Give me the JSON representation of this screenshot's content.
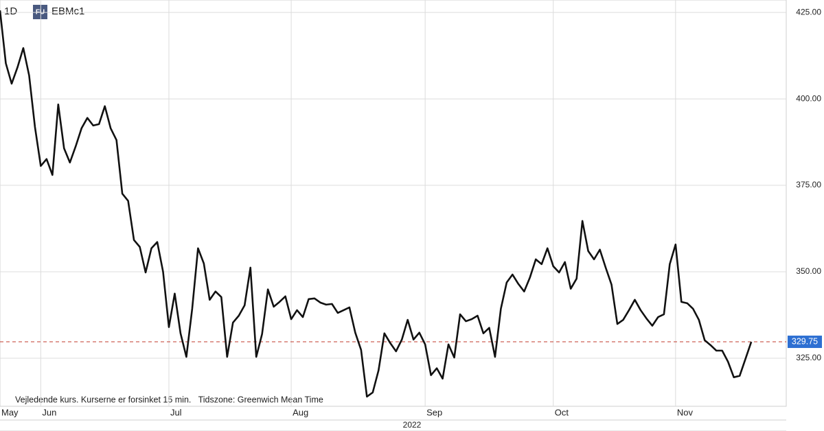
{
  "header": {
    "interval": "1D",
    "badge": "FU",
    "symbol": "EBMc1"
  },
  "footnote": "Vejledende kurs. Kurserne er forsinket 15 min.   Tidszone: Greenwich Mean Time",
  "chart_data": {
    "type": "line",
    "year_label": "2022",
    "color": "#111111",
    "grid": true,
    "xlim": [
      0,
      135
    ],
    "ylim": [
      311.1,
      428.6
    ],
    "xticks": [
      {
        "value": 0,
        "label": "May"
      },
      {
        "value": 7,
        "label": "Jun"
      },
      {
        "value": 29,
        "label": "Jul"
      },
      {
        "value": 50,
        "label": "Aug"
      },
      {
        "value": 73,
        "label": "Sep"
      },
      {
        "value": 95,
        "label": "Oct"
      },
      {
        "value": 116,
        "label": "Nov"
      }
    ],
    "yticks": [
      {
        "value": 325,
        "label": "325.00"
      },
      {
        "value": 350,
        "label": "350.00"
      },
      {
        "value": 375,
        "label": "375.00"
      },
      {
        "value": 400,
        "label": "400.00"
      },
      {
        "value": 425,
        "label": "425.00"
      }
    ],
    "last_price": 329.75,
    "last_price_color": "#c0392b",
    "series": [
      {
        "name": "EBMc1",
        "color": "#111111",
        "values": [
          425.6,
          410.3,
          404.4,
          409.1,
          414.7,
          406.8,
          391.9,
          380.6,
          382.6,
          378.0,
          398.4,
          385.7,
          381.6,
          386.3,
          391.5,
          394.5,
          392.3,
          392.7,
          397.9,
          391.5,
          388.1,
          372.6,
          370.5,
          359.2,
          357.2,
          349.8,
          356.8,
          358.6,
          350.0,
          334.0,
          343.7,
          332.2,
          325.4,
          339.3,
          356.8,
          352.4,
          341.9,
          344.3,
          342.7,
          325.4,
          335.3,
          337.3,
          340.3,
          351.2,
          325.4,
          332.0,
          344.9,
          339.9,
          341.3,
          342.9,
          336.3,
          338.9,
          336.9,
          342.1,
          342.3,
          341.1,
          340.5,
          340.7,
          338.1,
          338.9,
          339.7,
          332.4,
          327.4,
          313.9,
          315.1,
          321.5,
          332.2,
          329.4,
          327.0,
          330.4,
          336.1,
          330.4,
          332.4,
          329.0,
          320.1,
          322.1,
          319.1,
          329.0,
          325.2,
          337.7,
          335.7,
          336.3,
          337.3,
          332.2,
          333.8,
          325.4,
          339.3,
          346.9,
          349.2,
          346.5,
          344.3,
          348.4,
          353.6,
          352.2,
          356.8,
          351.6,
          349.8,
          352.8,
          345.1,
          348.0,
          364.7,
          356.0,
          353.6,
          356.4,
          351.2,
          346.3,
          334.9,
          336.1,
          338.9,
          341.9,
          338.9,
          336.5,
          334.4,
          336.9,
          337.7,
          352.2,
          357.9,
          341.3,
          340.9,
          339.3,
          336.1,
          330.2,
          328.8,
          327.2,
          327.2,
          324.0,
          319.5,
          319.9,
          324.8,
          329.75
        ]
      }
    ]
  }
}
